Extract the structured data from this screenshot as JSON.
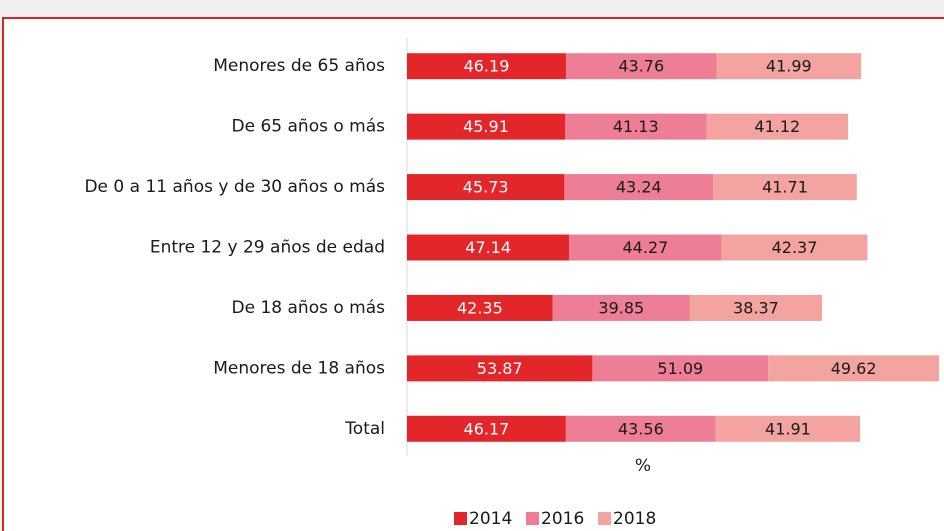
{
  "chart_data": {
    "type": "stacked_barh",
    "categories": [
      "Menores de 65 años",
      "De 65 años o más",
      "De 0 a 11 años y de 30 años o más",
      "Entre 12 y 29 años de edad",
      "De 18 años o más",
      "Menores de 18 años",
      "Total"
    ],
    "series": [
      {
        "name": "2014",
        "color": "#e3262a",
        "values": [
          46.19,
          45.91,
          45.73,
          47.14,
          42.35,
          53.87,
          46.17
        ]
      },
      {
        "name": "2016",
        "color": "#ee7e96",
        "values": [
          43.76,
          41.13,
          43.24,
          44.27,
          39.85,
          51.09,
          43.56
        ]
      },
      {
        "name": "2018",
        "color": "#f3a3a0",
        "values": [
          41.99,
          41.12,
          41.71,
          42.37,
          38.37,
          49.62,
          41.91
        ]
      }
    ],
    "xlabel": "%",
    "xlim": [
      0,
      155
    ],
    "legend": "bottom"
  }
}
